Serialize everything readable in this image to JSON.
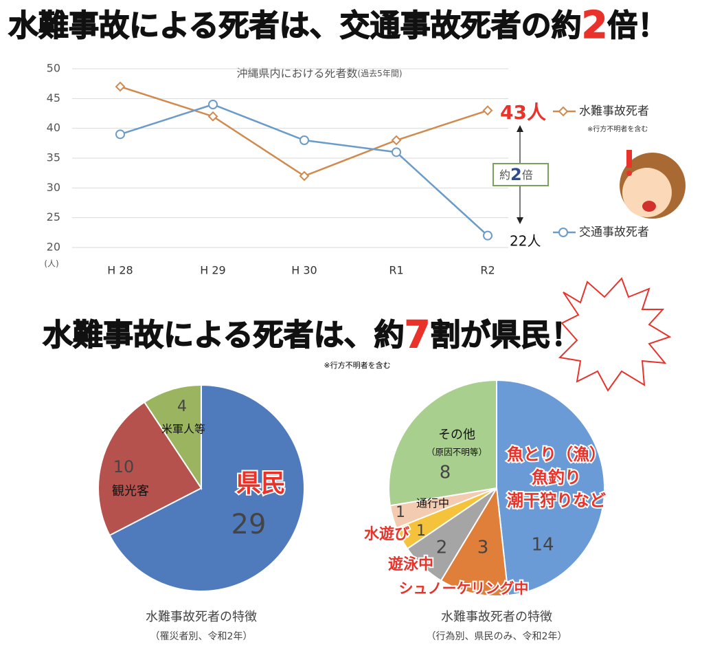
{
  "headline1": [
    "水難事故による死者は、交通事故死者の約",
    "2",
    "倍！"
  ],
  "headline2": [
    "水難事故による死者は、約",
    "7",
    "割が県民！"
  ],
  "headline2_note": "※行方不明者を含む",
  "chart_data": [
    {
      "type": "line",
      "title": "沖縄県内における死者数",
      "subtitle": "(過去5年間)",
      "y_unit": "(人)",
      "categories": [
        "H 28",
        "H 29",
        "H 30",
        "R1",
        "R2"
      ],
      "series": [
        {
          "name": "水難事故死者",
          "color": "#d08a4e",
          "marker": "diamond",
          "values": [
            47,
            42,
            32,
            38,
            43
          ],
          "value_labels": [
            null,
            null,
            null,
            null,
            "43人"
          ],
          "note": "※行方不明者を含む"
        },
        {
          "name": "交通事故死者",
          "color": "#6a9bc9",
          "marker": "circle",
          "values": [
            39,
            44,
            38,
            36,
            22
          ],
          "value_labels": [
            null,
            null,
            null,
            null,
            "22人"
          ]
        }
      ],
      "ylim": [
        20,
        50
      ],
      "yticks": [
        20,
        25,
        30,
        35,
        40,
        45,
        50
      ],
      "grid": true,
      "annotation": [
        "約",
        "2",
        "倍"
      ]
    },
    {
      "type": "pie",
      "title": "水難事故死者の特徴",
      "subtitle": "（罹災者別、令和2年）",
      "categories": [
        "県民",
        "観光客",
        "米軍人等"
      ],
      "values": [
        29,
        10,
        4
      ],
      "colors": [
        "#4f7bbd",
        "#b5524e",
        "#9bb460"
      ],
      "label_styles": [
        "red",
        "plain",
        "plain"
      ]
    },
    {
      "type": "pie",
      "title": "水難事故死者の特徴",
      "subtitle": "（行為別、県民のみ、令和2年）",
      "categories": [
        "魚とり（漁）\n魚釣り\n潮干狩りなど",
        "シュノーケリング中",
        "遊泳中",
        "水遊び",
        "通行中",
        "その他\n（原因不明等）"
      ],
      "values": [
        14,
        3,
        2,
        1,
        1,
        8
      ],
      "colors": [
        "#6b9bd6",
        "#e07f3a",
        "#a5a5a5",
        "#f5c23b",
        "#f3cbb0",
        "#a9cf8e"
      ],
      "label_styles": [
        "red",
        "red",
        "red",
        "red",
        "plain",
        "plain"
      ]
    }
  ]
}
